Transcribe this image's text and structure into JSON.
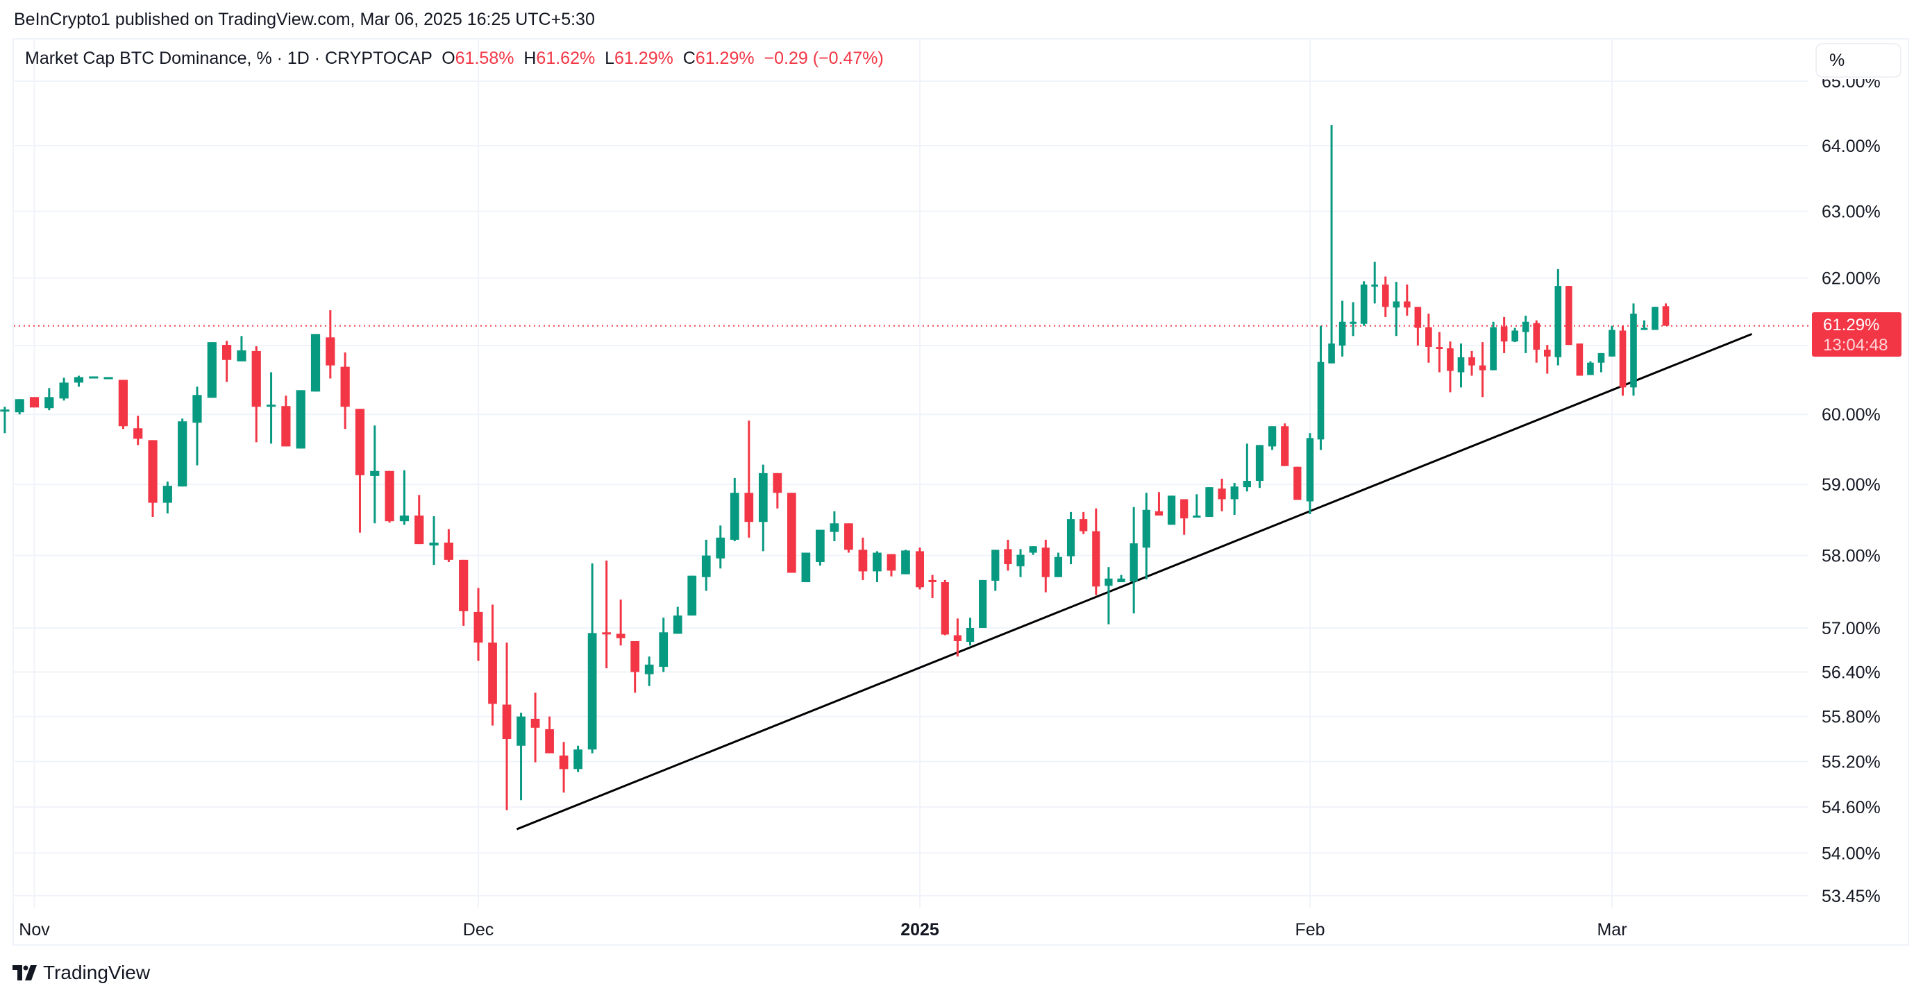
{
  "header": {
    "published": "BeInCrypto1 published on TradingView.com, Mar 06, 2025 16:25 UTC+5:30"
  },
  "legend": {
    "symbol": "Market Cap BTC Dominance, % · 1D · CRYPTOCAP",
    "open_label": "O",
    "open": "61.58%",
    "high_label": "H",
    "high": "61.62%",
    "low_label": "L",
    "low": "61.29%",
    "close_label": "C",
    "close": "61.29%",
    "change": "−0.29 (−0.47%)"
  },
  "price_axis": {
    "unit_button": "%",
    "last_price": "61.29%",
    "countdown": "13:04:48"
  },
  "footer": {
    "brand": "TradingView"
  },
  "colors": {
    "up": "#089981",
    "down": "#F23645",
    "grid": "#f0f3fa",
    "trendline": "#000000"
  },
  "chart_data": {
    "type": "candlestick",
    "title": "Market Cap BTC Dominance, % · 1D · CRYPTOCAP",
    "scale": "log",
    "ylim": [
      53.3,
      65.2
    ],
    "first_date": "2024-10-30",
    "interval": "1D",
    "y_ticks": [
      {
        "value": 65.0,
        "label": "65.00%"
      },
      {
        "value": 64.0,
        "label": "64.00%"
      },
      {
        "value": 63.0,
        "label": "63.00%"
      },
      {
        "value": 62.0,
        "label": "62.00%"
      },
      {
        "value": 60.0,
        "label": "60.00%"
      },
      {
        "value": 59.0,
        "label": "59.00%"
      },
      {
        "value": 58.0,
        "label": "58.00%"
      },
      {
        "value": 57.0,
        "label": "57.00%"
      },
      {
        "value": 56.4,
        "label": "56.40%"
      },
      {
        "value": 55.8,
        "label": "55.80%"
      },
      {
        "value": 55.2,
        "label": "55.20%"
      },
      {
        "value": 54.6,
        "label": "54.60%"
      },
      {
        "value": 54.0,
        "label": "54.00%"
      },
      {
        "value": 53.45,
        "label": "53.45%"
      }
    ],
    "extra_gridlines": [
      61.0
    ],
    "x_ticks": [
      {
        "index": 2,
        "label": "Nov",
        "bold": false
      },
      {
        "index": 32,
        "label": "Dec",
        "bold": false
      },
      {
        "index": 63,
        "label": "2025",
        "bold": true
      },
      {
        "index": 94,
        "label": "Feb",
        "bold": false
      },
      {
        "index": 122,
        "label": "Mar",
        "bold": false
      }
    ],
    "last_price": 61.29,
    "ohlc_fields": [
      "open",
      "high",
      "low",
      "close"
    ],
    "ohlc": [
      [
        60.05,
        60.11,
        59.73,
        60.07
      ],
      [
        60.03,
        60.22,
        60.0,
        60.22
      ],
      [
        60.25,
        60.25,
        60.1,
        60.1
      ],
      [
        60.09,
        60.38,
        60.06,
        60.25
      ],
      [
        60.23,
        60.53,
        60.2,
        60.46
      ],
      [
        60.46,
        60.56,
        60.4,
        60.54
      ],
      [
        60.54,
        60.55,
        60.53,
        60.55
      ],
      [
        60.54,
        60.54,
        60.51,
        60.54
      ],
      [
        60.5,
        60.5,
        59.79,
        59.83
      ],
      [
        59.8,
        59.98,
        59.56,
        59.65
      ],
      [
        59.63,
        59.63,
        58.54,
        58.74
      ],
      [
        58.74,
        59.04,
        58.59,
        58.98
      ],
      [
        58.97,
        59.94,
        58.97,
        59.9
      ],
      [
        59.88,
        60.4,
        59.27,
        60.28
      ],
      [
        60.24,
        61.05,
        60.24,
        61.05
      ],
      [
        61.01,
        61.07,
        60.47,
        60.79
      ],
      [
        60.77,
        61.14,
        60.77,
        60.93
      ],
      [
        60.92,
        60.99,
        59.6,
        60.11
      ],
      [
        60.12,
        60.61,
        59.58,
        60.14
      ],
      [
        60.12,
        60.27,
        59.54,
        59.54
      ],
      [
        59.51,
        60.35,
        59.51,
        60.35
      ],
      [
        60.33,
        61.17,
        60.33,
        61.17
      ],
      [
        61.12,
        61.52,
        60.52,
        60.71
      ],
      [
        60.69,
        60.9,
        59.79,
        60.11
      ],
      [
        60.08,
        60.08,
        58.32,
        59.13
      ],
      [
        59.12,
        59.84,
        58.45,
        59.19
      ],
      [
        59.19,
        59.19,
        58.46,
        58.48
      ],
      [
        58.48,
        59.2,
        58.43,
        58.56
      ],
      [
        58.56,
        58.85,
        58.16,
        58.16
      ],
      [
        58.14,
        58.55,
        57.87,
        58.18
      ],
      [
        58.18,
        58.37,
        57.91,
        57.94
      ],
      [
        57.94,
        57.94,
        57.03,
        57.23
      ],
      [
        57.22,
        57.55,
        56.55,
        56.8
      ],
      [
        56.8,
        57.32,
        55.68,
        55.97
      ],
      [
        55.96,
        56.8,
        54.56,
        55.5
      ],
      [
        55.41,
        55.85,
        54.69,
        55.8
      ],
      [
        55.77,
        56.12,
        55.19,
        55.65
      ],
      [
        55.63,
        55.8,
        55.31,
        55.31
      ],
      [
        55.28,
        55.46,
        54.79,
        55.1
      ],
      [
        55.1,
        55.41,
        55.06,
        55.36
      ],
      [
        55.36,
        57.89,
        55.31,
        56.93
      ],
      [
        56.94,
        57.93,
        56.45,
        56.93
      ],
      [
        56.92,
        57.39,
        56.76,
        56.86
      ],
      [
        56.82,
        56.82,
        56.12,
        56.4
      ],
      [
        56.37,
        56.61,
        56.21,
        56.5
      ],
      [
        56.47,
        57.14,
        56.4,
        56.94
      ],
      [
        56.92,
        57.29,
        56.92,
        57.17
      ],
      [
        57.17,
        57.72,
        57.17,
        57.72
      ],
      [
        57.7,
        58.22,
        57.51,
        58.0
      ],
      [
        57.96,
        58.42,
        57.82,
        58.25
      ],
      [
        58.22,
        59.09,
        58.2,
        58.88
      ],
      [
        58.88,
        59.91,
        58.25,
        58.47
      ],
      [
        58.47,
        59.28,
        58.06,
        59.16
      ],
      [
        59.16,
        59.16,
        58.66,
        58.88
      ],
      [
        58.88,
        58.88,
        57.76,
        57.76
      ],
      [
        57.63,
        58.04,
        57.63,
        58.04
      ],
      [
        57.91,
        58.36,
        57.86,
        58.36
      ],
      [
        58.33,
        58.62,
        58.2,
        58.45
      ],
      [
        58.45,
        58.45,
        58.04,
        58.08
      ],
      [
        58.08,
        58.25,
        57.66,
        57.78
      ],
      [
        57.78,
        58.06,
        57.63,
        58.04
      ],
      [
        58.02,
        58.02,
        57.71,
        57.79
      ],
      [
        57.74,
        58.08,
        57.74,
        58.07
      ],
      [
        58.06,
        58.11,
        57.53,
        57.56
      ],
      [
        57.66,
        57.73,
        57.41,
        57.63
      ],
      [
        57.63,
        57.66,
        56.9,
        56.91
      ],
      [
        56.9,
        57.13,
        56.61,
        56.82
      ],
      [
        56.81,
        57.14,
        56.76,
        57.0
      ],
      [
        57.0,
        57.66,
        57.0,
        57.66
      ],
      [
        57.65,
        58.08,
        57.51,
        58.08
      ],
      [
        58.09,
        58.22,
        57.79,
        57.88
      ],
      [
        57.85,
        58.09,
        57.7,
        58.01
      ],
      [
        58.04,
        58.13,
        58.01,
        58.13
      ],
      [
        58.11,
        58.22,
        57.49,
        57.7
      ],
      [
        57.7,
        58.04,
        57.7,
        57.98
      ],
      [
        57.99,
        58.61,
        57.88,
        58.51
      ],
      [
        58.51,
        58.61,
        58.3,
        58.34
      ],
      [
        58.34,
        58.66,
        57.45,
        57.57
      ],
      [
        57.58,
        57.84,
        57.05,
        57.68
      ],
      [
        57.63,
        57.73,
        57.63,
        57.68
      ],
      [
        57.64,
        58.68,
        57.2,
        58.17
      ],
      [
        58.11,
        58.88,
        57.67,
        58.64
      ],
      [
        58.62,
        58.89,
        58.56,
        58.56
      ],
      [
        58.43,
        58.84,
        58.43,
        58.84
      ],
      [
        58.79,
        58.79,
        58.29,
        58.52
      ],
      [
        58.54,
        58.86,
        58.54,
        58.56
      ],
      [
        58.54,
        58.96,
        58.54,
        58.96
      ],
      [
        58.94,
        59.08,
        58.62,
        58.79
      ],
      [
        58.79,
        59.02,
        58.57,
        58.97
      ],
      [
        58.96,
        59.58,
        58.9,
        59.05
      ],
      [
        59.05,
        59.56,
        58.95,
        59.56
      ],
      [
        59.54,
        59.83,
        59.49,
        59.83
      ],
      [
        59.83,
        59.87,
        59.26,
        59.26
      ],
      [
        59.25,
        59.25,
        58.78,
        58.78
      ],
      [
        58.76,
        59.73,
        58.58,
        59.66
      ],
      [
        59.64,
        61.29,
        59.49,
        60.76
      ],
      [
        60.74,
        64.32,
        60.74,
        61.03
      ],
      [
        61.0,
        61.66,
        60.84,
        61.35
      ],
      [
        61.34,
        61.64,
        61.14,
        61.35
      ],
      [
        61.32,
        61.95,
        61.29,
        61.9
      ],
      [
        61.88,
        62.24,
        61.62,
        61.9
      ],
      [
        61.9,
        62.02,
        61.42,
        61.57
      ],
      [
        61.56,
        61.94,
        61.14,
        61.65
      ],
      [
        61.65,
        61.9,
        61.44,
        61.56
      ],
      [
        61.57,
        61.57,
        61.0,
        61.26
      ],
      [
        61.27,
        61.47,
        60.75,
        60.98
      ],
      [
        60.98,
        61.2,
        60.61,
        60.96
      ],
      [
        60.96,
        61.06,
        60.32,
        60.63
      ],
      [
        60.61,
        61.03,
        60.39,
        60.83
      ],
      [
        60.83,
        60.92,
        60.56,
        60.71
      ],
      [
        60.71,
        61.05,
        60.25,
        60.64
      ],
      [
        60.64,
        61.35,
        60.64,
        61.27
      ],
      [
        61.28,
        61.42,
        60.89,
        61.06
      ],
      [
        61.06,
        61.26,
        61.05,
        61.22
      ],
      [
        61.2,
        61.44,
        60.89,
        61.35
      ],
      [
        61.33,
        61.37,
        60.75,
        60.94
      ],
      [
        60.94,
        61.01,
        60.59,
        60.84
      ],
      [
        60.83,
        62.13,
        60.71,
        61.88
      ],
      [
        61.88,
        61.88,
        61.01,
        61.01
      ],
      [
        61.03,
        61.03,
        60.56,
        60.56
      ],
      [
        60.57,
        60.77,
        60.57,
        60.75
      ],
      [
        60.75,
        60.89,
        60.61,
        60.89
      ],
      [
        60.84,
        61.29,
        60.84,
        61.23
      ],
      [
        61.22,
        61.29,
        60.27,
        60.39
      ],
      [
        60.39,
        61.62,
        60.27,
        61.47
      ],
      [
        61.23,
        61.37,
        61.23,
        61.26
      ],
      [
        61.23,
        61.57,
        61.23,
        61.57
      ],
      [
        61.58,
        61.62,
        61.29,
        61.29
      ]
    ],
    "trendline": [
      {
        "index": 34.7,
        "value": 54.31
      },
      {
        "index": 135,
        "value": 61.17
      }
    ]
  }
}
